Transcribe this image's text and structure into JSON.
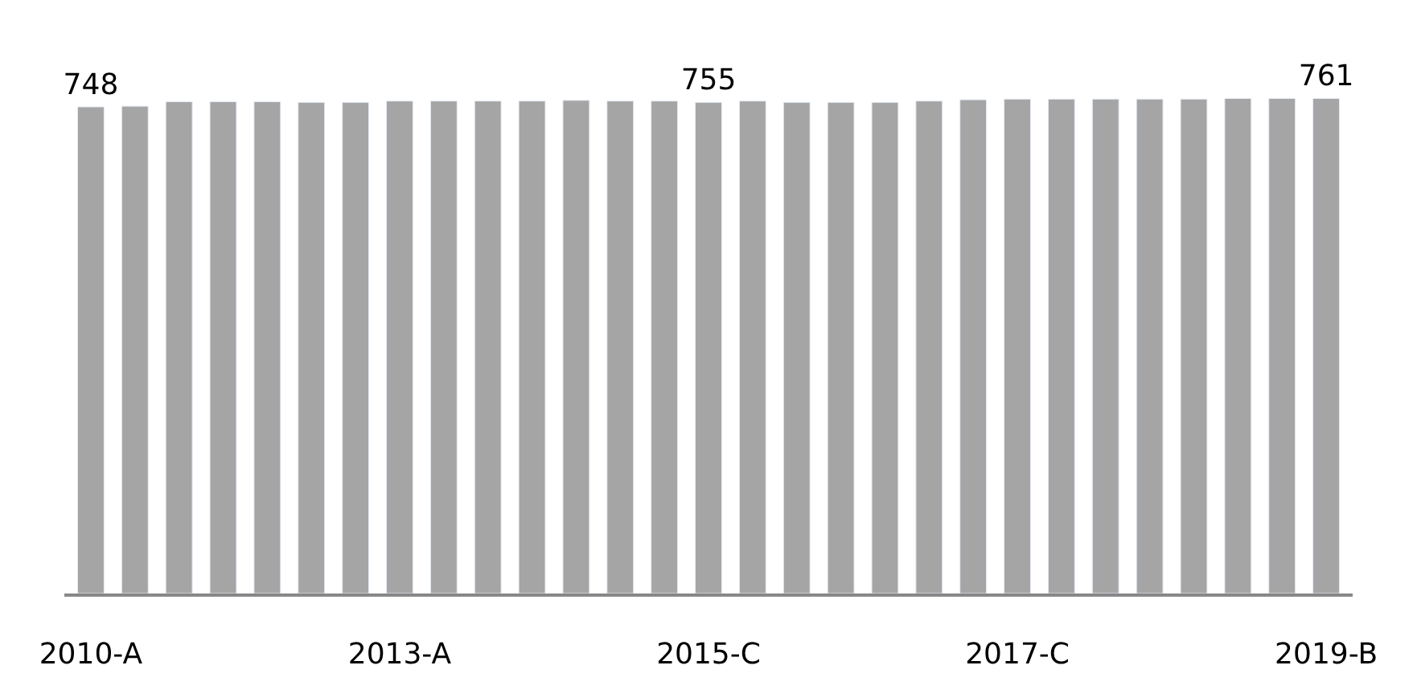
{
  "chart_data": {
    "type": "bar",
    "categories": [
      "2010-A",
      null,
      null,
      null,
      null,
      null,
      null,
      "2013-A",
      null,
      null,
      null,
      null,
      null,
      null,
      "2015-C",
      null,
      null,
      null,
      null,
      null,
      null,
      "2017-C",
      null,
      null,
      null,
      null,
      null,
      null,
      "2019-B"
    ],
    "values": [
      748,
      749,
      756,
      756,
      756,
      755,
      755,
      757,
      757,
      757,
      757,
      758,
      757,
      757,
      755,
      757,
      755,
      755,
      755,
      757,
      759,
      760,
      760,
      760,
      760,
      760,
      761,
      761,
      761
    ],
    "value_labels": [
      "748",
      null,
      null,
      null,
      null,
      null,
      null,
      null,
      null,
      null,
      null,
      null,
      null,
      null,
      "755",
      null,
      null,
      null,
      null,
      null,
      null,
      null,
      null,
      null,
      null,
      null,
      null,
      null,
      "761"
    ],
    "color": "#a5a5a5"
  }
}
